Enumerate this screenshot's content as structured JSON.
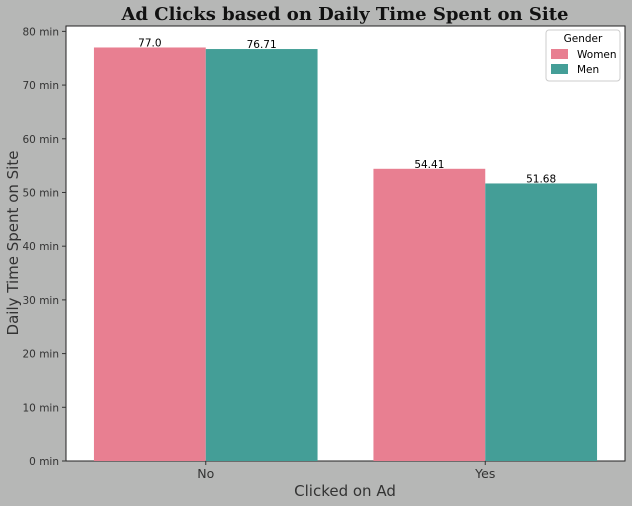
{
  "chart_data": {
    "type": "bar",
    "title": "Ad Clicks based on Daily Time Spent on Site",
    "xlabel": "Clicked on Ad",
    "ylabel": "Daily Time Spent on Site",
    "categories": [
      "No",
      "Yes"
    ],
    "series": [
      {
        "name": "Women",
        "values": [
          77.0,
          54.41
        ],
        "labels": [
          "77.0",
          "54.41"
        ],
        "color": "#e87f91"
      },
      {
        "name": "Men",
        "values": [
          76.71,
          51.68
        ],
        "labels": [
          "76.71",
          "51.68"
        ],
        "color": "#449e97"
      }
    ],
    "ylim": [
      0,
      81
    ],
    "yticks": [
      0,
      10,
      20,
      30,
      40,
      50,
      60,
      70,
      80
    ],
    "ytick_labels": [
      "0 min",
      "10 min",
      "20 min",
      "30 min",
      "40 min",
      "50 min",
      "60 min",
      "70 min",
      "80 min"
    ],
    "legend": {
      "title": "Gender",
      "position": "top-right"
    },
    "grid": false,
    "colors": {
      "figure_background": "#b6b7b6",
      "plot_background": "#ffffff"
    }
  }
}
